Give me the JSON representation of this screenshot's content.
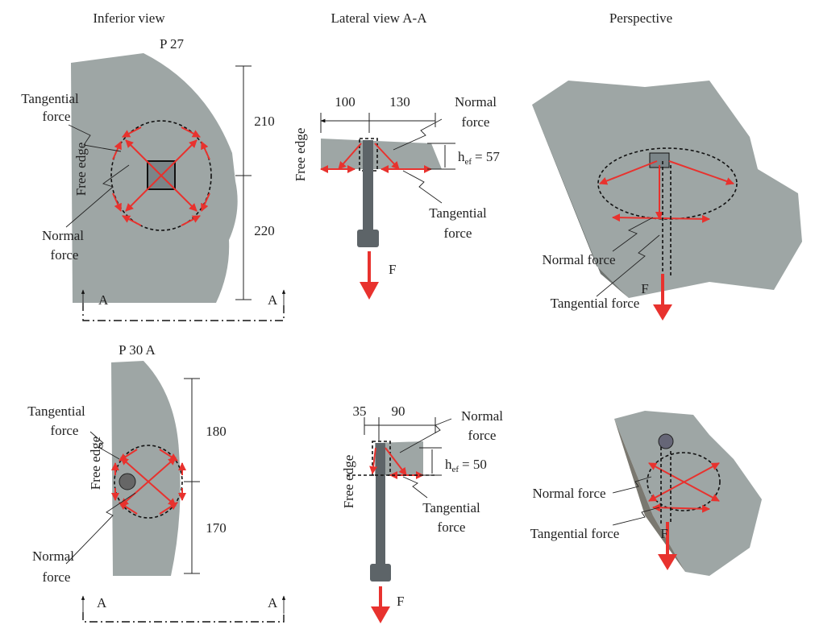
{
  "column_headers": [
    "Inferior view",
    "Lateral view A-A",
    "Perspective"
  ],
  "rows": [
    {
      "specimen": "P 27",
      "inferior": {
        "tangential_force": [
          "Tangential",
          "force"
        ],
        "free_edge": "Free edge",
        "normal_force": [
          "Normal",
          "force"
        ],
        "dimensions": [
          "210",
          "220"
        ],
        "section_marks": [
          "A",
          "A"
        ]
      },
      "lateral": {
        "dimensions": [
          "100",
          "130"
        ],
        "free_edge": "Free edge",
        "normal_force": [
          "Normal",
          "force"
        ],
        "embedment": {
          "symbol": "h",
          "subscript": "ef",
          "value": "= 57"
        },
        "tangential_force": [
          "Tangential",
          "force"
        ],
        "force": "F"
      },
      "perspective": {
        "normal_force": "Normal force",
        "tangential_force": "Tangential force",
        "force": "F"
      }
    },
    {
      "specimen": "P 30 A",
      "inferior": {
        "tangential_force": [
          "Tangential",
          "force"
        ],
        "free_edge": "Free edge",
        "normal_force": [
          "Normal",
          "force"
        ],
        "dimensions": [
          "180",
          "170"
        ],
        "section_marks": [
          "A",
          "A"
        ]
      },
      "lateral": {
        "dimensions": [
          "35",
          "90"
        ],
        "free_edge": "Free edge",
        "normal_force": [
          "Normal",
          "force"
        ],
        "embedment": {
          "symbol": "h",
          "subscript": "ef",
          "value": "= 50"
        },
        "tangential_force": [
          "Tangential",
          "force"
        ],
        "force": "F"
      },
      "perspective": {
        "normal_force": "Normal force",
        "tangential_force": "Tangential force",
        "force": "F"
      }
    }
  ]
}
